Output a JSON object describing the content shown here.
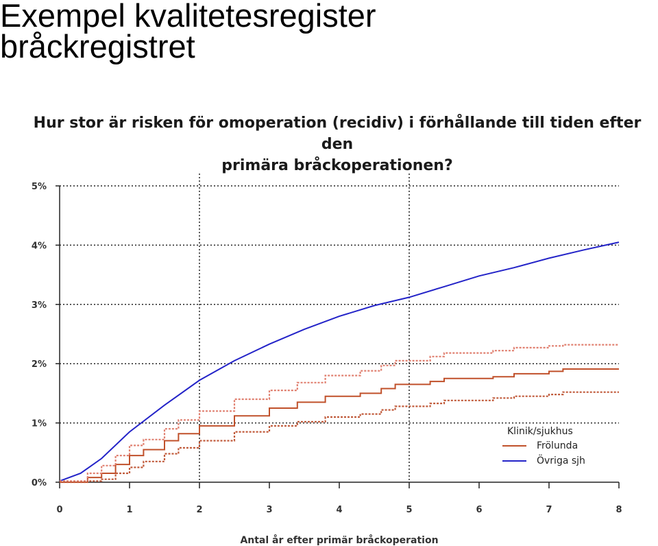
{
  "slide": {
    "title": "Exempel kvalitetesregister\nbråckregistret"
  },
  "chart_data": {
    "type": "line",
    "title": "Hur stor är risken för omoperation (recidiv) i förhållande till tiden efter den\nprimära bråckoperationen?",
    "xlabel": "Antal år efter primär bråckoperation",
    "ylabel": "",
    "xlim": [
      0,
      8
    ],
    "ylim": [
      0,
      5
    ],
    "x_ticks": [
      "0",
      "1",
      "2",
      "3",
      "4",
      "5",
      "6",
      "7",
      "8"
    ],
    "y_ticks": [
      "0%",
      "1%",
      "2%",
      "3%",
      "4%",
      "5%"
    ],
    "grid": "horizontal dotted at each y tick; vertical dotted at x = 2 and x = 5",
    "legend": {
      "title": "Klinik/sjukhus",
      "placement": "bottom-right",
      "entries": [
        {
          "label": "Frölunda",
          "color": "#c0502a"
        },
        {
          "label": "Övriga sjh",
          "color": "#2323c8"
        }
      ]
    },
    "series": [
      {
        "name": "Övriga sjh",
        "color": "#2323c8",
        "style": "solid",
        "points": [
          [
            0,
            0.02
          ],
          [
            0.3,
            0.15
          ],
          [
            0.6,
            0.4
          ],
          [
            1.0,
            0.85
          ],
          [
            1.5,
            1.3
          ],
          [
            2.0,
            1.72
          ],
          [
            2.5,
            2.05
          ],
          [
            3.0,
            2.33
          ],
          [
            3.5,
            2.58
          ],
          [
            4.0,
            2.8
          ],
          [
            4.5,
            2.98
          ],
          [
            5.0,
            3.12
          ],
          [
            5.5,
            3.3
          ],
          [
            6.0,
            3.48
          ],
          [
            6.5,
            3.62
          ],
          [
            7.0,
            3.78
          ],
          [
            7.5,
            3.92
          ],
          [
            8.0,
            4.05
          ]
        ]
      },
      {
        "name": "Frölunda",
        "color": "#c0502a",
        "style": "solid-step",
        "points": [
          [
            0,
            0
          ],
          [
            0.4,
            0.08
          ],
          [
            0.6,
            0.15
          ],
          [
            0.8,
            0.3
          ],
          [
            1.0,
            0.45
          ],
          [
            1.2,
            0.55
          ],
          [
            1.5,
            0.7
          ],
          [
            1.7,
            0.82
          ],
          [
            2.0,
            0.95
          ],
          [
            2.5,
            1.12
          ],
          [
            3.0,
            1.25
          ],
          [
            3.4,
            1.35
          ],
          [
            3.8,
            1.45
          ],
          [
            4.3,
            1.5
          ],
          [
            4.6,
            1.58
          ],
          [
            4.8,
            1.65
          ],
          [
            5.3,
            1.7
          ],
          [
            5.5,
            1.75
          ],
          [
            6.2,
            1.78
          ],
          [
            6.5,
            1.83
          ],
          [
            7.0,
            1.87
          ],
          [
            7.2,
            1.91
          ],
          [
            8.0,
            1.91
          ]
        ]
      },
      {
        "name": "",
        "color": "#e08070",
        "style": "dotted-step",
        "points": [
          [
            0,
            0.02
          ],
          [
            0.4,
            0.15
          ],
          [
            0.6,
            0.28
          ],
          [
            0.8,
            0.45
          ],
          [
            1.0,
            0.62
          ],
          [
            1.2,
            0.72
          ],
          [
            1.5,
            0.9
          ],
          [
            1.7,
            1.05
          ],
          [
            2.0,
            1.2
          ],
          [
            2.5,
            1.4
          ],
          [
            3.0,
            1.55
          ],
          [
            3.4,
            1.68
          ],
          [
            3.8,
            1.8
          ],
          [
            4.3,
            1.88
          ],
          [
            4.6,
            1.97
          ],
          [
            4.8,
            2.05
          ],
          [
            5.3,
            2.12
          ],
          [
            5.5,
            2.18
          ],
          [
            6.2,
            2.22
          ],
          [
            6.5,
            2.27
          ],
          [
            7.0,
            2.3
          ],
          [
            7.2,
            2.32
          ],
          [
            8.0,
            2.32
          ]
        ]
      },
      {
        "name": "",
        "color": "#c05a3a",
        "style": "dotted-step",
        "points": [
          [
            0,
            0
          ],
          [
            0.4,
            0.02
          ],
          [
            0.6,
            0.05
          ],
          [
            0.8,
            0.15
          ],
          [
            1.0,
            0.25
          ],
          [
            1.2,
            0.35
          ],
          [
            1.5,
            0.48
          ],
          [
            1.7,
            0.58
          ],
          [
            2.0,
            0.7
          ],
          [
            2.5,
            0.85
          ],
          [
            3.0,
            0.95
          ],
          [
            3.4,
            1.02
          ],
          [
            3.8,
            1.1
          ],
          [
            4.3,
            1.15
          ],
          [
            4.6,
            1.22
          ],
          [
            4.8,
            1.28
          ],
          [
            5.3,
            1.33
          ],
          [
            5.5,
            1.38
          ],
          [
            6.2,
            1.42
          ],
          [
            6.5,
            1.45
          ],
          [
            7.0,
            1.48
          ],
          [
            7.2,
            1.52
          ],
          [
            8.0,
            1.52
          ]
        ]
      }
    ]
  }
}
